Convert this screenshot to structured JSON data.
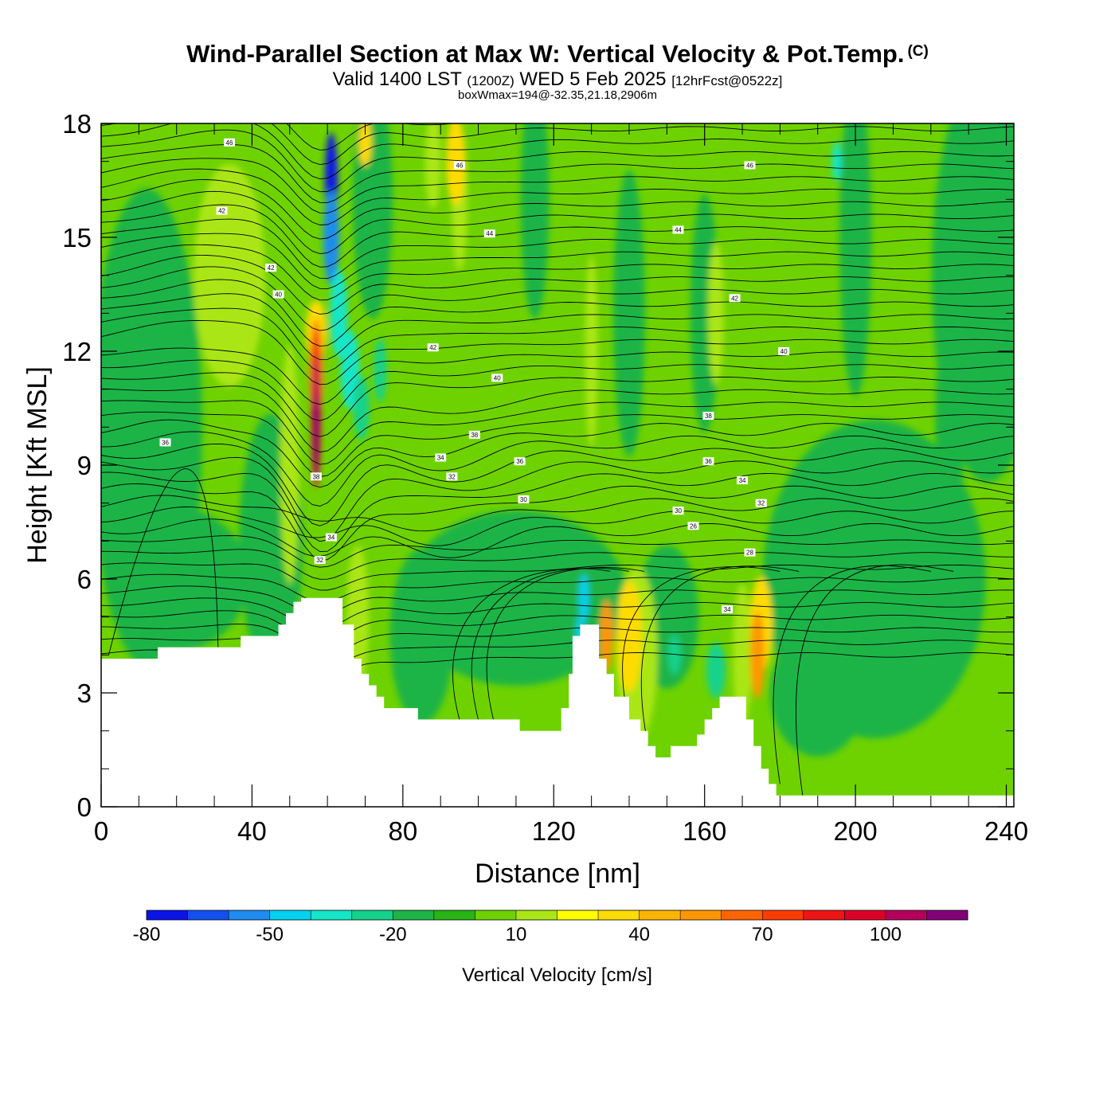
{
  "title": {
    "main": "Wind-Parallel Section at Max W: Vertical Velocity & Pot.Temp.",
    "copyright": "(C)",
    "valid_prefix": "Valid 1400 LST",
    "valid_utc": "(1200Z)",
    "valid_date": "WED 5 Feb 2025",
    "forecast": "[12hrFcst@0522z]",
    "boxwmax": "boxWmax=194@-32.35,21.18,2906m"
  },
  "chart_data": {
    "type": "heatmap",
    "xlabel": "Distance [nm]",
    "ylabel": "Height [Kft MSL]",
    "xlim": [
      0,
      242
    ],
    "ylim": [
      0,
      18
    ],
    "x_ticks": [
      0,
      40,
      80,
      120,
      160,
      200,
      240
    ],
    "y_ticks": [
      0,
      3,
      6,
      9,
      12,
      15,
      18
    ],
    "colorbar": {
      "label": "Vertical Velocity [cm/s]",
      "levels": [
        -80,
        -70,
        -60,
        -50,
        -40,
        -30,
        -20,
        -10,
        0,
        10,
        20,
        30,
        40,
        50,
        60,
        70,
        80,
        90,
        100,
        110,
        120
      ],
      "tick_labels": [
        -80,
        -50,
        -20,
        10,
        40,
        70,
        100
      ],
      "colors": [
        "#0a14e6",
        "#1450f0",
        "#1e8cf0",
        "#00d2f0",
        "#14e6c8",
        "#14d28c",
        "#1eb446",
        "#28b414",
        "#6ed200",
        "#aae614",
        "#ffff00",
        "#ffdc00",
        "#ffb400",
        "#ff9600",
        "#ff6400",
        "#ff3c00",
        "#f01414",
        "#dc0028",
        "#b4005a",
        "#820078"
      ]
    },
    "terrain": [
      [
        0,
        3.9
      ],
      [
        15,
        3.9
      ],
      [
        15,
        4.2
      ],
      [
        37,
        4.2
      ],
      [
        37,
        4.5
      ],
      [
        47,
        4.5
      ],
      [
        47,
        4.8
      ],
      [
        49,
        4.8
      ],
      [
        49,
        5.1
      ],
      [
        51,
        5.1
      ],
      [
        51,
        5.4
      ],
      [
        53,
        5.4
      ],
      [
        53,
        5.5
      ],
      [
        64,
        5.5
      ],
      [
        64,
        4.8
      ],
      [
        67,
        4.8
      ],
      [
        67,
        3.9
      ],
      [
        69,
        3.9
      ],
      [
        69,
        3.5
      ],
      [
        71,
        3.5
      ],
      [
        71,
        3.2
      ],
      [
        73,
        3.2
      ],
      [
        73,
        2.9
      ],
      [
        75,
        2.9
      ],
      [
        75,
        2.6
      ],
      [
        84,
        2.6
      ],
      [
        84,
        2.3
      ],
      [
        111,
        2.3
      ],
      [
        111,
        2.0
      ],
      [
        122,
        2.0
      ],
      [
        122,
        2.6
      ],
      [
        124,
        2.6
      ],
      [
        124,
        3.5
      ],
      [
        125,
        3.5
      ],
      [
        125,
        4.5
      ],
      [
        127,
        4.5
      ],
      [
        127,
        4.8
      ],
      [
        132,
        4.8
      ],
      [
        132,
        3.9
      ],
      [
        134,
        3.9
      ],
      [
        134,
        3.5
      ],
      [
        136,
        3.5
      ],
      [
        136,
        2.9
      ],
      [
        140,
        2.9
      ],
      [
        140,
        2.3
      ],
      [
        143,
        2.3
      ],
      [
        143,
        2.0
      ],
      [
        145,
        2.0
      ],
      [
        145,
        1.6
      ],
      [
        147,
        1.6
      ],
      [
        147,
        1.3
      ],
      [
        151,
        1.3
      ],
      [
        151,
        1.6
      ],
      [
        158,
        1.6
      ],
      [
        158,
        1.9
      ],
      [
        160,
        1.9
      ],
      [
        160,
        2.3
      ],
      [
        162,
        2.3
      ],
      [
        162,
        2.6
      ],
      [
        164,
        2.6
      ],
      [
        164,
        2.9
      ],
      [
        171,
        2.9
      ],
      [
        171,
        2.3
      ],
      [
        173,
        2.3
      ],
      [
        173,
        1.6
      ],
      [
        175,
        1.6
      ],
      [
        175,
        1.0
      ],
      [
        177,
        1.0
      ],
      [
        177,
        0.6
      ],
      [
        179,
        0.6
      ],
      [
        179,
        0.3
      ],
      [
        242,
        0.3
      ]
    ],
    "w_field": [
      {
        "x": 58,
        "y": 10.5,
        "w": 110,
        "note": "max updraft"
      },
      {
        "x": 61,
        "y": 16,
        "w": -80,
        "note": "downdraft"
      },
      {
        "x": 128,
        "y": 5.5,
        "w": -50
      },
      {
        "x": 134,
        "y": 4.5,
        "w": 60
      },
      {
        "x": 174,
        "y": 3.8,
        "w": 70
      },
      {
        "x": 162,
        "y": 3.8,
        "w": -30
      }
    ],
    "theta_contour_labels": [
      {
        "x": 34,
        "y": 17.5,
        "label": "46"
      },
      {
        "x": 32,
        "y": 15.7,
        "label": "42"
      },
      {
        "x": 45,
        "y": 14.2,
        "label": "42"
      },
      {
        "x": 47,
        "y": 13.5,
        "label": "40"
      },
      {
        "x": 95,
        "y": 16.9,
        "label": "46"
      },
      {
        "x": 103,
        "y": 15.1,
        "label": "44"
      },
      {
        "x": 153,
        "y": 15.2,
        "label": "44"
      },
      {
        "x": 172,
        "y": 16.9,
        "label": "46"
      },
      {
        "x": 168,
        "y": 13.4,
        "label": "42"
      },
      {
        "x": 88,
        "y": 12.1,
        "label": "42"
      },
      {
        "x": 105,
        "y": 11.3,
        "label": "40"
      },
      {
        "x": 181,
        "y": 12.0,
        "label": "40"
      },
      {
        "x": 17,
        "y": 9.6,
        "label": "36"
      },
      {
        "x": 99,
        "y": 9.8,
        "label": "38"
      },
      {
        "x": 161,
        "y": 10.3,
        "label": "38"
      },
      {
        "x": 90,
        "y": 9.2,
        "label": "34"
      },
      {
        "x": 111,
        "y": 9.1,
        "label": "36"
      },
      {
        "x": 161,
        "y": 9.1,
        "label": "36"
      },
      {
        "x": 93,
        "y": 8.7,
        "label": "32"
      },
      {
        "x": 170,
        "y": 8.6,
        "label": "34"
      },
      {
        "x": 112,
        "y": 8.1,
        "label": "30"
      },
      {
        "x": 175,
        "y": 8.0,
        "label": "32"
      },
      {
        "x": 153,
        "y": 7.8,
        "label": "30"
      },
      {
        "x": 157,
        "y": 7.4,
        "label": "26"
      },
      {
        "x": 57,
        "y": 8.7,
        "label": "38"
      },
      {
        "x": 61,
        "y": 7.1,
        "label": "34"
      },
      {
        "x": 58,
        "y": 6.5,
        "label": "32"
      },
      {
        "x": 172,
        "y": 6.7,
        "label": "28"
      },
      {
        "x": 166,
        "y": 5.2,
        "label": "34"
      }
    ]
  }
}
